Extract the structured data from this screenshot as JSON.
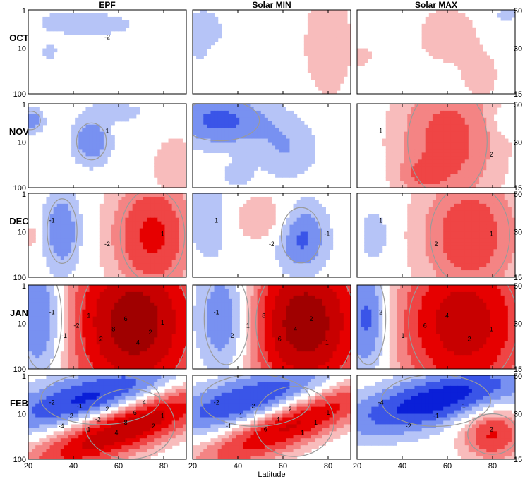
{
  "chart_data": {
    "type": "heatmap",
    "columns": [
      "EPF",
      "Solar MIN",
      "Solar MAX"
    ],
    "rows": [
      "OCT",
      "NOV",
      "DEC",
      "JAN",
      "FEB"
    ],
    "xlabel": "Latitude",
    "x_ticks": [
      "20",
      "40",
      "60",
      "80"
    ],
    "xlim": [
      20,
      90
    ],
    "left_y_ticks": [
      "1",
      "10",
      "100"
    ],
    "right_y_ticks": [
      "50",
      "30",
      "15"
    ],
    "colors": {
      "blue": [
        "#b6c4f7",
        "#7891f1",
        "#3a55e8",
        "#0a1fd8"
      ],
      "red": [
        "#f8bcbc",
        "#f48484",
        "#ef4545",
        "#e60000",
        "#c80000",
        "#a00000"
      ],
      "contour": "#9a9a9a"
    },
    "panels": [
      {
        "row": "OCT",
        "col": "EPF",
        "labels": [
          "-2"
        ],
        "anoms": [
          [
            36,
            0.15,
            10,
            0.11,
            -1
          ],
          [
            55,
            0.17,
            9,
            0.09,
            -1
          ],
          [
            29,
            0.5,
            3,
            0.07,
            -1
          ]
        ]
      },
      {
        "row": "OCT",
        "col": "Solar MIN",
        "labels": [],
        "anoms": [
          [
            25,
            0.3,
            8,
            0.28,
            -1
          ],
          [
            80,
            0.4,
            10,
            0.6,
            1
          ],
          [
            32,
            0.5,
            3,
            0.08,
            1
          ]
        ]
      },
      {
        "row": "OCT",
        "col": "Solar MAX",
        "labels": [],
        "anoms": [
          [
            86,
            0.05,
            4,
            0.08,
            -1
          ],
          [
            60,
            0.3,
            12,
            0.3,
            1
          ],
          [
            75,
            0.8,
            6,
            0.2,
            1
          ],
          [
            22,
            0.55,
            4,
            0.1,
            1
          ]
        ]
      },
      {
        "row": "NOV",
        "col": "EPF",
        "labels": [
          "1"
        ],
        "anoms": [
          [
            48,
            0.45,
            6,
            0.2,
            -2.2
          ],
          [
            21,
            0.2,
            4,
            0.1,
            -2.2
          ],
          [
            85,
            0.75,
            8,
            0.28,
            1.2
          ],
          [
            60,
            0.1,
            10,
            0.09,
            -1
          ]
        ]
      },
      {
        "row": "NOV",
        "col": "Solar MIN",
        "labels": [],
        "anoms": [
          [
            32,
            0.2,
            16,
            0.22,
            -2.6
          ],
          [
            62,
            0.55,
            10,
            0.26,
            -1.3
          ],
          [
            40,
            0.85,
            5,
            0.12,
            -1
          ]
        ]
      },
      {
        "row": "NOV",
        "col": "Solar MAX",
        "labels": [
          "1",
          "2"
        ],
        "anoms": [
          [
            60,
            0.45,
            16,
            0.6,
            2.8
          ],
          [
            86,
            0.2,
            4,
            0.1,
            -1
          ],
          [
            48,
            0.85,
            6,
            0.12,
            1.2
          ]
        ]
      },
      {
        "row": "DEC",
        "col": "EPF",
        "labels": [
          "-1",
          "-2",
          "1"
        ],
        "anoms": [
          [
            75,
            0.5,
            13,
            0.5,
            3.6
          ],
          [
            35,
            0.45,
            6,
            0.35,
            -2.2
          ],
          [
            22,
            0.5,
            3,
            0.15,
            1
          ]
        ]
      },
      {
        "row": "DEC",
        "col": "Solar MIN",
        "labels": [
          "1",
          "-2",
          "-1"
        ],
        "anoms": [
          [
            68,
            0.5,
            8,
            0.3,
            -2.8
          ],
          [
            52,
            0.3,
            12,
            0.22,
            1.5
          ],
          [
            28,
            0.3,
            8,
            0.4,
            -1.2
          ]
        ]
      },
      {
        "row": "DEC",
        "col": "Solar MAX",
        "labels": [
          "1",
          "2",
          "1"
        ],
        "anoms": [
          [
            70,
            0.5,
            16,
            0.55,
            3.1
          ],
          [
            28,
            0.5,
            5,
            0.25,
            -1.2
          ]
        ]
      },
      {
        "row": "JAN",
        "col": "EPF",
        "labels": [
          "-1",
          "-1",
          "-2",
          "1",
          "2",
          "8",
          "6",
          "4",
          "2",
          "1"
        ],
        "anoms": [
          [
            67,
            0.45,
            22,
            0.75,
            6
          ],
          [
            26,
            0.4,
            8,
            0.55,
            -3.2
          ]
        ]
      },
      {
        "row": "JAN",
        "col": "Solar MIN",
        "labels": [
          "-1",
          "2",
          "1",
          "8",
          "6",
          "4",
          "2",
          "1"
        ],
        "anoms": [
          [
            70,
            0.45,
            20,
            0.7,
            6
          ],
          [
            35,
            0.4,
            9,
            0.5,
            -3.2
          ]
        ]
      },
      {
        "row": "JAN",
        "col": "Solar MAX",
        "labels": [
          "2",
          "1",
          "6",
          "4",
          "2",
          "1"
        ],
        "anoms": [
          [
            67,
            0.45,
            22,
            0.7,
            5
          ],
          [
            25,
            0.4,
            7,
            0.5,
            -3.2
          ]
        ]
      },
      {
        "row": "FEB",
        "col": "EPF",
        "labels": [
          "-2",
          "-4",
          "-2",
          "-1",
          "1",
          "-2",
          "2",
          "4",
          "8",
          "6",
          "4",
          "2",
          "1"
        ],
        "anoms": [
          [
            65,
            0.58,
            18,
            0.38,
            6,
            -0.9
          ],
          [
            52,
            0.28,
            24,
            0.28,
            -4,
            -0.9
          ]
        ]
      },
      {
        "row": "FEB",
        "col": "Solar MIN",
        "labels": [
          "-2",
          "-1",
          "1",
          "2",
          "6",
          "4",
          "2",
          "1",
          "-1",
          "-1"
        ],
        "anoms": [
          [
            65,
            0.55,
            16,
            0.38,
            5,
            -0.9
          ],
          [
            48,
            0.3,
            22,
            0.28,
            -3.5,
            -0.9
          ]
        ]
      },
      {
        "row": "FEB",
        "col": "Solar MAX",
        "labels": [
          "-4",
          "-2",
          "-1",
          "1",
          "2"
        ],
        "anoms": [
          [
            55,
            0.3,
            22,
            0.28,
            -4,
            -0.9
          ],
          [
            80,
            0.7,
            10,
            0.22,
            3.5
          ]
        ]
      }
    ]
  }
}
